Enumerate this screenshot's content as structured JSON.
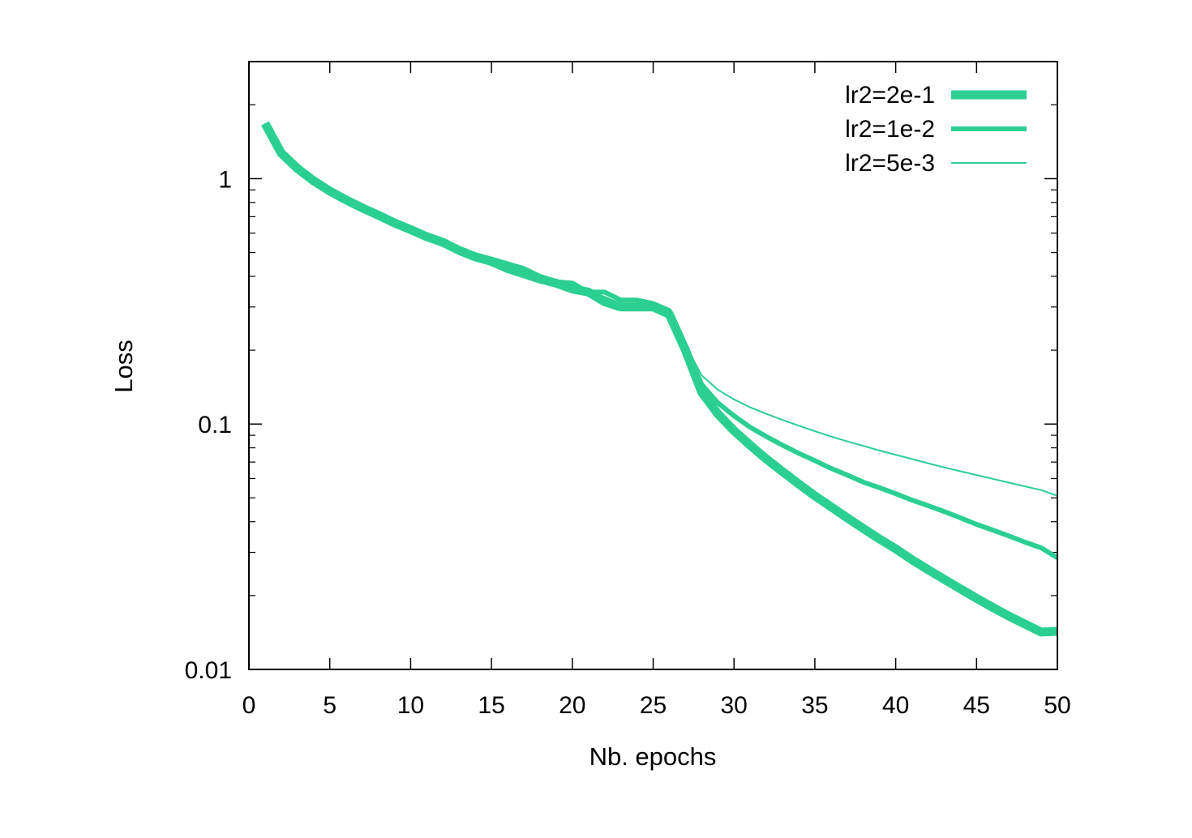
{
  "chart_data": {
    "type": "line",
    "xlabel": "Nb. epochs",
    "ylabel": "Loss",
    "xlim": [
      0,
      50
    ],
    "ylim": [
      0.01,
      3
    ],
    "yscale": "log",
    "xticks": [
      0,
      5,
      10,
      15,
      20,
      25,
      30,
      35,
      40,
      45,
      50
    ],
    "xtick_labels": [
      "0",
      "5",
      "10",
      "15",
      "20",
      "25",
      "30",
      "35",
      "40",
      "45",
      "50"
    ],
    "yticks": [
      0.01,
      0.1,
      1
    ],
    "ytick_labels": [
      "0.01",
      "0.1",
      "1"
    ],
    "legend_position": "top-right",
    "color": "#2ccf92",
    "series": [
      {
        "name": "lr2=2e-1",
        "x": [
          1,
          2,
          3,
          4,
          5,
          6,
          7,
          8,
          9,
          10,
          11,
          12,
          13,
          14,
          15,
          16,
          17,
          18,
          19,
          20,
          21,
          22,
          23,
          24,
          25,
          26,
          27,
          28,
          29,
          30,
          31,
          32,
          33,
          34,
          35,
          36,
          37,
          38,
          39,
          40,
          41,
          42,
          43,
          44,
          45,
          46,
          47,
          48,
          49,
          50
        ],
        "y": [
          1.68,
          1.27,
          1.1,
          0.98,
          0.89,
          0.82,
          0.76,
          0.71,
          0.66,
          0.62,
          0.58,
          0.55,
          0.51,
          0.48,
          0.46,
          0.43,
          0.41,
          0.39,
          0.375,
          0.355,
          0.345,
          0.315,
          0.3,
          0.3,
          0.3,
          0.28,
          0.2,
          0.135,
          0.11,
          0.094,
          0.082,
          0.072,
          0.064,
          0.057,
          0.051,
          0.046,
          0.0415,
          0.0375,
          0.034,
          0.031,
          0.028,
          0.0255,
          0.0233,
          0.0213,
          0.0195,
          0.0179,
          0.0165,
          0.0153,
          0.0142,
          0.0143
        ]
      },
      {
        "name": "lr2=1e-2",
        "x": [
          1,
          2,
          3,
          4,
          5,
          6,
          7,
          8,
          9,
          10,
          11,
          12,
          13,
          14,
          15,
          16,
          17,
          18,
          19,
          20,
          21,
          22,
          23,
          24,
          25,
          26,
          27,
          28,
          29,
          30,
          31,
          32,
          33,
          34,
          35,
          36,
          37,
          38,
          39,
          40,
          41,
          42,
          43,
          44,
          45,
          46,
          47,
          48,
          49,
          50
        ],
        "y": [
          1.68,
          1.27,
          1.1,
          0.98,
          0.89,
          0.82,
          0.76,
          0.71,
          0.66,
          0.62,
          0.58,
          0.55,
          0.52,
          0.49,
          0.47,
          0.45,
          0.43,
          0.4,
          0.38,
          0.375,
          0.345,
          0.345,
          0.32,
          0.32,
          0.31,
          0.29,
          0.205,
          0.145,
          0.122,
          0.108,
          0.097,
          0.089,
          0.082,
          0.076,
          0.071,
          0.066,
          0.062,
          0.058,
          0.055,
          0.052,
          0.049,
          0.0465,
          0.044,
          0.0415,
          0.039,
          0.037,
          0.035,
          0.033,
          0.0313,
          0.0285
        ]
      },
      {
        "name": "lr2=5e-3",
        "x": [
          1,
          2,
          3,
          4,
          5,
          6,
          7,
          8,
          9,
          10,
          11,
          12,
          13,
          14,
          15,
          16,
          17,
          18,
          19,
          20,
          21,
          22,
          23,
          24,
          25,
          26,
          27,
          28,
          29,
          30,
          31,
          32,
          33,
          34,
          35,
          36,
          37,
          38,
          39,
          40,
          41,
          42,
          43,
          44,
          45,
          46,
          47,
          48,
          49,
          50
        ],
        "y": [
          1.68,
          1.27,
          1.1,
          0.98,
          0.89,
          0.82,
          0.76,
          0.71,
          0.66,
          0.62,
          0.58,
          0.55,
          0.52,
          0.49,
          0.47,
          0.45,
          0.42,
          0.4,
          0.38,
          0.365,
          0.35,
          0.33,
          0.31,
          0.3,
          0.295,
          0.275,
          0.21,
          0.158,
          0.138,
          0.126,
          0.117,
          0.11,
          0.104,
          0.0985,
          0.0935,
          0.089,
          0.085,
          0.0815,
          0.078,
          0.075,
          0.072,
          0.0692,
          0.0666,
          0.0642,
          0.062,
          0.0598,
          0.0577,
          0.0557,
          0.0538,
          0.051
        ]
      }
    ]
  }
}
